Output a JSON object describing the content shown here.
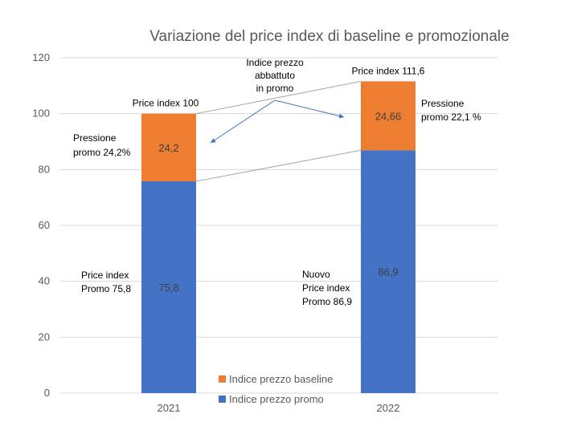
{
  "chart_data": {
    "type": "bar",
    "stacked": true,
    "title": "Variazione del price index di baseline e promozionale",
    "categories": [
      "2021",
      "2022"
    ],
    "series": [
      {
        "name": "Indice prezzo promo",
        "values": [
          75.8,
          86.9
        ],
        "labels": [
          "75,8",
          "86,9"
        ],
        "color": "#4472C4"
      },
      {
        "name": "Indice prezzo baseline",
        "values": [
          24.2,
          24.66
        ],
        "labels": [
          "24,2",
          "24,66"
        ],
        "color": "#ED7D31"
      }
    ],
    "ylim": [
      0,
      120
    ],
    "yticks": [
      "0",
      "20",
      "40",
      "60",
      "80",
      "100",
      "120"
    ],
    "grid": true,
    "legend_position": "bottom-center",
    "annotations": {
      "total_2021": "Price index 100",
      "total_2022": "Price index 111,6",
      "pressure_2021": [
        "Pressione",
        "promo 24,2%"
      ],
      "pressure_2022": [
        "Pressione",
        "promo 22,1 %"
      ],
      "promo_2021": [
        "Price index",
        "Promo 75,8"
      ],
      "promo_2022": [
        "Nuovo",
        "Price index",
        "Promo 86,9"
      ],
      "arrow_label": [
        "Indice prezzo",
        "abbattuto",
        "in promo"
      ]
    },
    "colors": {
      "gridline": "#D9D9D9",
      "connector": "#A6A6A6",
      "arrow": "#4472C4"
    }
  }
}
